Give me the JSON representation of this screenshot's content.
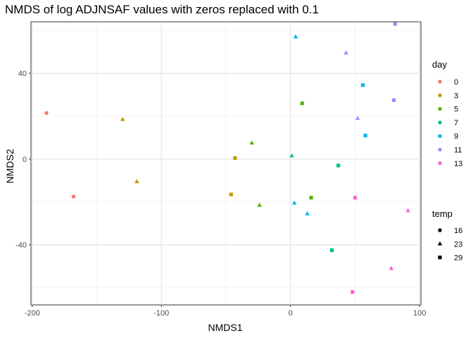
{
  "chart_data": {
    "type": "scatter",
    "title": "NMDS of log ADJNSAF values with zeros replaced with 0.1",
    "xlabel": "NMDS1",
    "ylabel": "NMDS2",
    "xlim": [
      -201,
      101
    ],
    "ylim": [
      -68,
      64
    ],
    "x_ticks": [
      -200,
      -100,
      0,
      100
    ],
    "y_ticks": [
      -40,
      0,
      40
    ],
    "x_tick_labels": [
      "-200",
      "-100",
      "0",
      "100"
    ],
    "y_tick_labels": [
      "-40",
      "0",
      "40"
    ],
    "grid": true,
    "legend": {
      "color_title": "day",
      "shape_title": "temp",
      "placement": "right",
      "days": [
        {
          "label": "0",
          "color": "#F8766D"
        },
        {
          "label": "3",
          "color": "#C49A00"
        },
        {
          "label": "5",
          "color": "#53B400"
        },
        {
          "label": "7",
          "color": "#00C094"
        },
        {
          "label": "9",
          "color": "#00B6EB"
        },
        {
          "label": "11",
          "color": "#A58AFF"
        },
        {
          "label": "13",
          "color": "#FB61D7"
        }
      ],
      "temps": [
        {
          "label": "16",
          "shape": "circle"
        },
        {
          "label": "23",
          "shape": "triangle"
        },
        {
          "label": "29",
          "shape": "square"
        }
      ]
    },
    "points": [
      {
        "x": -189,
        "y": 21.5,
        "day": "0",
        "temp": "16"
      },
      {
        "x": -168,
        "y": -17.5,
        "day": "0",
        "temp": "16"
      },
      {
        "x": -130,
        "y": 18.5,
        "day": "3",
        "temp": "23"
      },
      {
        "x": -119,
        "y": -10.5,
        "day": "3",
        "temp": "23"
      },
      {
        "x": -43,
        "y": 0.5,
        "day": "3",
        "temp": "29"
      },
      {
        "x": -46,
        "y": -16.5,
        "day": "3",
        "temp": "29"
      },
      {
        "x": -30,
        "y": 7.5,
        "day": "5",
        "temp": "23"
      },
      {
        "x": -24,
        "y": -21.5,
        "day": "5",
        "temp": "23"
      },
      {
        "x": 9,
        "y": 26,
        "day": "5",
        "temp": "29"
      },
      {
        "x": 16,
        "y": -18,
        "day": "5",
        "temp": "29"
      },
      {
        "x": 1,
        "y": 1.5,
        "day": "7",
        "temp": "23"
      },
      {
        "x": 37,
        "y": -3,
        "day": "7",
        "temp": "29"
      },
      {
        "x": 32,
        "y": -42.5,
        "day": "7",
        "temp": "29"
      },
      {
        "x": 4,
        "y": 57,
        "day": "9",
        "temp": "23"
      },
      {
        "x": 3,
        "y": -20.5,
        "day": "9",
        "temp": "23"
      },
      {
        "x": 13,
        "y": -25.5,
        "day": "9",
        "temp": "23"
      },
      {
        "x": 56,
        "y": 34.5,
        "day": "9",
        "temp": "29"
      },
      {
        "x": 58,
        "y": 11,
        "day": "9",
        "temp": "29"
      },
      {
        "x": 43,
        "y": 49.5,
        "day": "11",
        "temp": "23"
      },
      {
        "x": 52,
        "y": 19,
        "day": "11",
        "temp": "23"
      },
      {
        "x": 81,
        "y": 63,
        "day": "11",
        "temp": "29"
      },
      {
        "x": 80,
        "y": 27.5,
        "day": "11",
        "temp": "29"
      },
      {
        "x": 91,
        "y": -24,
        "day": "13",
        "temp": "23"
      },
      {
        "x": 78,
        "y": -51,
        "day": "13",
        "temp": "23"
      },
      {
        "x": 50,
        "y": -18,
        "day": "13",
        "temp": "29"
      },
      {
        "x": 48,
        "y": -62,
        "day": "13",
        "temp": "29"
      }
    ]
  }
}
